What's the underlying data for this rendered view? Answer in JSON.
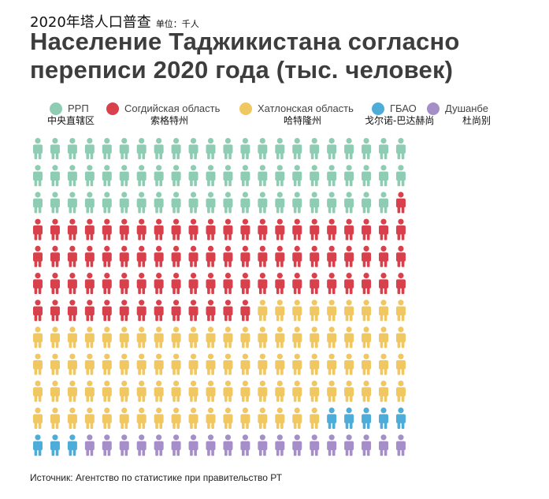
{
  "title_cn": "2020年塔人口普查",
  "unit_cn": "单位：千人",
  "chart_data": {
    "type": "pictogram",
    "title": "Население Таджикистана согласно переписи 2020 года (тыс. человек)",
    "series": [
      {
        "name": "РРП",
        "name_cn": "中央直辖区",
        "color": "#8ecdb3",
        "icons": 65
      },
      {
        "name": "Согдийская область",
        "name_cn": "索格特州",
        "color": "#d8404b",
        "icons": 80
      },
      {
        "name": "Хатлонская область",
        "name_cn": "哈特隆州",
        "color": "#f0c760",
        "icons": 92
      },
      {
        "name": "ГБАО",
        "name_cn": "戈尔诺-巴达赫尚",
        "color": "#4eacd8",
        "icons": 8
      },
      {
        "name": "Душанбе",
        "name_cn": "杜尚别",
        "color": "#a68ec8",
        "icons": 19
      }
    ],
    "grid": {
      "columns": 22,
      "rows": 12
    }
  },
  "source": "Источник: Агентство по статистике при правительство РТ"
}
